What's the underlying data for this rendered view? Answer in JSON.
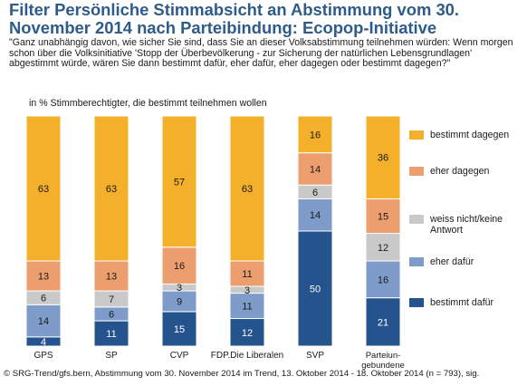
{
  "title": "Filter Persönliche Stimmabsicht an Abstimmung vom 30. November 2014 nach Parteibindung: Ecopop-Initiative",
  "question": "\"Ganz unabhängig davon, wie sicher Sie sind, dass Sie an dieser Volksabstimmung teilnehmen würden: Wenn morgen schon über die Volksinitiative 'Stopp der Überbevölkerung - zur Sicherung der natürlichen Lebensgrundlagen' abgestimmt würde, wären Sie dann bestimmt dafür, eher dafür, eher dagegen oder bestimmt dagegen?\"",
  "subtitle": "in % Stimmberechtigter, die bestimmt teilnehmen wollen",
  "footer": "© SRG-Trend/gfs.bern, Abstimmung vom 30. November 2014 im Trend, 13. Oktober 2014 - 18. Oktober 2014 (n = 793), sig.",
  "chart_data": {
    "type": "bar",
    "stacked": true,
    "orientation": "vertical",
    "categories": [
      "GPS",
      "SP",
      "CVP",
      "FDP.Die Liberalen",
      "SVP",
      "Parteiun-\ngebundene"
    ],
    "series": [
      {
        "name": "bestimmt dafür",
        "color": "#24538e",
        "values": [
          4,
          11,
          15,
          12,
          50,
          21
        ]
      },
      {
        "name": "eher dafür",
        "color": "#7f9bc9",
        "values": [
          14,
          6,
          9,
          11,
          14,
          16
        ]
      },
      {
        "name": "weiss nicht/keine Antwort",
        "color": "#c9c9c9",
        "values": [
          6,
          7,
          3,
          3,
          6,
          12
        ]
      },
      {
        "name": "eher dagegen",
        "color": "#ec9e6e",
        "values": [
          13,
          13,
          16,
          11,
          14,
          15
        ]
      },
      {
        "name": "bestimmt dagegen",
        "color": "#f5b02b",
        "values": [
          63,
          63,
          57,
          63,
          16,
          36
        ]
      }
    ],
    "legend_position": "right",
    "legend_order": [
      "bestimmt dagegen",
      "eher dagegen",
      "weiss nicht/keine Antwort",
      "eher dafür",
      "bestimmt dafür"
    ],
    "ylim": [
      0,
      100
    ],
    "grid": false,
    "data_labels": true
  }
}
